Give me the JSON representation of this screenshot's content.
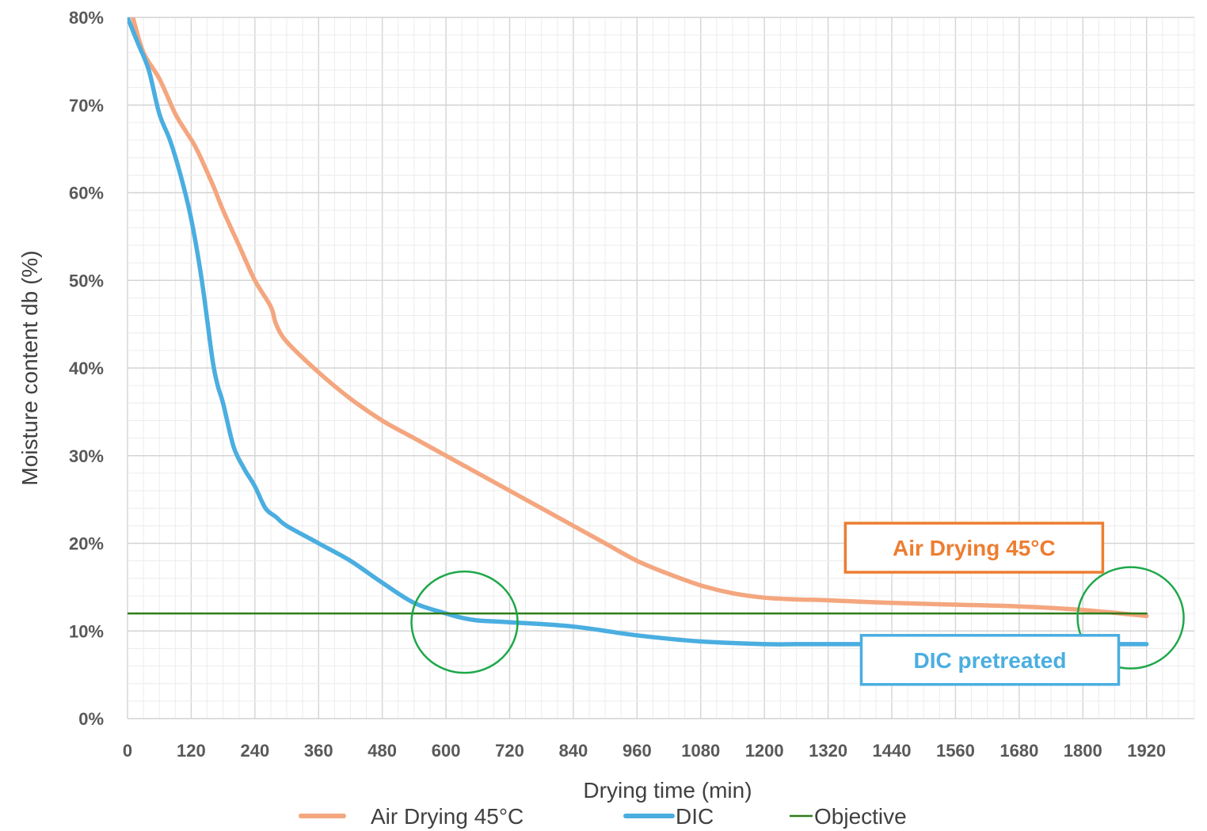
{
  "chart_data": {
    "type": "line",
    "title": "",
    "xlabel": "Drying time (min)",
    "ylabel": "Moisture content db (%)",
    "xlim": [
      0,
      2010
    ],
    "ylim": [
      0,
      80
    ],
    "x_ticks": [
      0,
      120,
      240,
      360,
      480,
      600,
      720,
      840,
      960,
      1080,
      1200,
      1320,
      1440,
      1560,
      1680,
      1800,
      1920
    ],
    "y_ticks": [
      0,
      10,
      20,
      30,
      40,
      50,
      60,
      70,
      80
    ],
    "y_tick_labels": [
      "0%",
      "10%",
      "20%",
      "30%",
      "40%",
      "50%",
      "60%",
      "70%",
      "80%"
    ],
    "grid": true,
    "legend_position": "bottom",
    "series": [
      {
        "name": "Air Drying 45°C",
        "color": "#f4a67f",
        "x": [
          0,
          10,
          30,
          60,
          90,
          110,
          130,
          160,
          180,
          210,
          240,
          270,
          280,
          300,
          360,
          420,
          480,
          540,
          600,
          660,
          720,
          780,
          840,
          900,
          960,
          1020,
          1080,
          1140,
          1200,
          1260,
          1320,
          1440,
          1560,
          1680,
          1800,
          1920
        ],
        "y": [
          82,
          80,
          76,
          73,
          69,
          67,
          65,
          61,
          58,
          54,
          50,
          47,
          45,
          43,
          39.5,
          36.5,
          34,
          32,
          30,
          28,
          26,
          24,
          22,
          20,
          18,
          16.5,
          15.2,
          14.3,
          13.8,
          13.6,
          13.5,
          13.2,
          13,
          12.8,
          12.4,
          11.7
        ]
      },
      {
        "name": "DIC",
        "color": "#4aaee0",
        "x": [
          0,
          20,
          40,
          60,
          80,
          100,
          120,
          140,
          160,
          170,
          180,
          200,
          220,
          240,
          260,
          280,
          300,
          360,
          420,
          480,
          540,
          600,
          630,
          660,
          720,
          840,
          960,
          1080,
          1200,
          1260,
          1320,
          1440,
          1560,
          1680,
          1800,
          1920
        ],
        "y": [
          80,
          77,
          74,
          69,
          66,
          62,
          57,
          50,
          41,
          38,
          36,
          31,
          28.5,
          26.5,
          24,
          23,
          22,
          20,
          18,
          15.5,
          13.2,
          12,
          11.5,
          11.2,
          11,
          10.5,
          9.5,
          8.8,
          8.5,
          8.5,
          8.5,
          8.5,
          8.5,
          8.5,
          8.5,
          8.5
        ]
      },
      {
        "name": "Objective",
        "color": "#2e7d1a",
        "x": [
          0,
          1920
        ],
        "y": [
          12,
          12
        ]
      }
    ],
    "annotations": [
      {
        "text": "Air Drying 45°C",
        "color": "#ed7d31",
        "x": 1595,
        "y": 19.5
      },
      {
        "text": "DIC pretreated",
        "color": "#4aaee0",
        "x": 1625,
        "y": 6.7
      }
    ],
    "highlight_circles": [
      {
        "x": 635,
        "y": 11,
        "color": "#1ea84a"
      },
      {
        "x": 1890,
        "y": 11.5,
        "color": "#1ea84a"
      }
    ]
  }
}
